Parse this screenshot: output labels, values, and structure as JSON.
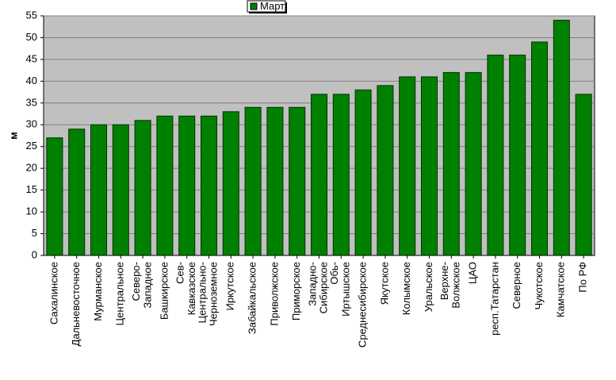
{
  "chart_data": {
    "type": "bar",
    "y_label": "м",
    "categories": [
      "Сахалинское",
      "Дальневосточное",
      "Мурманское",
      "Центральное",
      "Северо-\nЗападное",
      "Башкирское",
      "Сев-\nКавказское",
      "Центрально-\nЧерноземное",
      "Иркутское",
      "Забайкальское",
      "Приволжское",
      "Приморское",
      "Западно-\nСибирское",
      "Обь-\nИртышское",
      "Среднесибирское",
      "Якутское",
      "Колымское",
      "Уральское",
      "Верхне-\nВолжское",
      "ЦАО",
      "респ.Татарстан",
      "Северное",
      "Чукотское",
      "Камчатское",
      "По РФ"
    ],
    "series": [
      {
        "name": "Март",
        "color": "#008000",
        "values": [
          27,
          29,
          30,
          30,
          31,
          32,
          32,
          32,
          33,
          34,
          34,
          34,
          37,
          37,
          38,
          39,
          41,
          41,
          42,
          42,
          46,
          46,
          49,
          54,
          37
        ]
      }
    ],
    "ylim": [
      0,
      55
    ],
    "yticks": [
      0,
      5,
      10,
      15,
      20,
      25,
      30,
      35,
      40,
      45,
      50,
      55
    ],
    "grid": true,
    "legend": "top"
  }
}
